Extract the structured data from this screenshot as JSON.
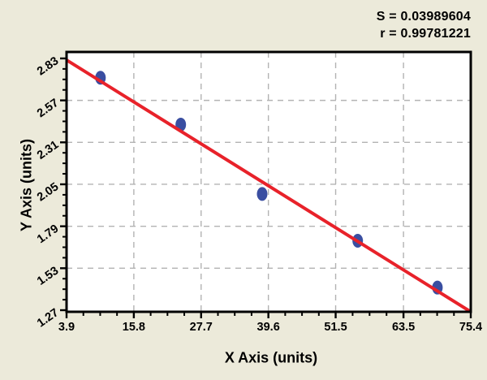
{
  "figure": {
    "background": "#ECEADA",
    "text_color": "#000000",
    "stats": {
      "line1": "S = 0.03989604",
      "line2": "r = 0.99781221"
    }
  },
  "chart_data": {
    "type": "scatter",
    "title": "",
    "xlabel": "X Axis (units)",
    "ylabel": "Y Axis (units)",
    "xlim": [
      3.9,
      75.4
    ],
    "ylim": [
      1.26,
      2.87
    ],
    "x_ticks": [
      3.9,
      15.8,
      27.7,
      39.6,
      51.5,
      63.5,
      75.4
    ],
    "x_tick_labels": [
      "3.9",
      "15.8",
      "27.7",
      "39.6",
      "51.5",
      "63.5",
      "75.4"
    ],
    "y_ticks": [
      1.27,
      1.53,
      1.79,
      2.05,
      2.31,
      2.57,
      2.83
    ],
    "y_tick_labels": [
      "1.27",
      "1.53",
      "1.79",
      "2.05",
      "2.31",
      "2.57",
      "2.83"
    ],
    "minor_ticks_per_interval": 3,
    "grid": true,
    "legend": "none",
    "points": [
      {
        "x": 9.9,
        "y": 2.71
      },
      {
        "x": 24.1,
        "y": 2.42
      },
      {
        "x": 38.5,
        "y": 1.99
      },
      {
        "x": 55.4,
        "y": 1.7
      },
      {
        "x": 69.5,
        "y": 1.41
      }
    ],
    "fit_line": {
      "x1": 3.9,
      "y1": 2.82,
      "x2": 75.4,
      "y2": 1.26
    },
    "colors": {
      "point": "#3A4EA1",
      "line": "#E8222A",
      "grid": "#B3B3B3",
      "axis": "#000000",
      "plot_bg": "#FFFFFF",
      "tick_text": "#000000"
    }
  }
}
